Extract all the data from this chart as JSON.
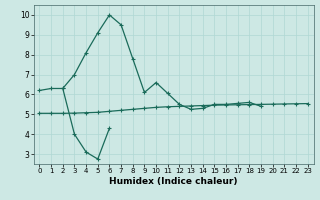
{
  "xlabel": "Humidex (Indice chaleur)",
  "background_color": "#cde8e4",
  "grid_color": "#b0d8d4",
  "line_color": "#1a6b5a",
  "xlim": [
    -0.5,
    23.5
  ],
  "ylim": [
    2.5,
    10.5
  ],
  "xticks": [
    0,
    1,
    2,
    3,
    4,
    5,
    6,
    7,
    8,
    9,
    10,
    11,
    12,
    13,
    14,
    15,
    16,
    17,
    18,
    19,
    20,
    21,
    22,
    23
  ],
  "yticks": [
    3,
    4,
    5,
    6,
    7,
    8,
    9,
    10
  ],
  "line1_x": [
    0,
    1,
    2,
    3,
    4,
    5,
    6,
    7,
    8,
    9,
    10,
    11,
    12,
    13,
    14,
    15,
    16,
    17,
    18,
    19
  ],
  "line1_y": [
    6.2,
    6.3,
    6.3,
    7.0,
    8.1,
    9.1,
    10.0,
    9.5,
    7.8,
    6.1,
    6.6,
    6.05,
    5.5,
    5.25,
    5.3,
    5.5,
    5.5,
    5.55,
    5.6,
    5.4
  ],
  "line2_x": [
    0,
    1,
    2,
    3,
    4,
    5,
    6,
    7,
    8,
    9,
    10,
    11,
    12,
    13,
    14,
    15,
    16,
    17,
    18,
    19,
    20,
    21,
    22,
    23
  ],
  "line2_y": [
    5.05,
    5.05,
    5.05,
    5.06,
    5.08,
    5.1,
    5.15,
    5.2,
    5.25,
    5.3,
    5.35,
    5.38,
    5.4,
    5.42,
    5.44,
    5.46,
    5.47,
    5.48,
    5.49,
    5.5,
    5.51,
    5.52,
    5.53,
    5.54
  ],
  "line3_x": [
    2,
    3,
    4,
    5,
    6
  ],
  "line3_y": [
    6.3,
    4.0,
    3.1,
    2.75,
    4.3
  ]
}
